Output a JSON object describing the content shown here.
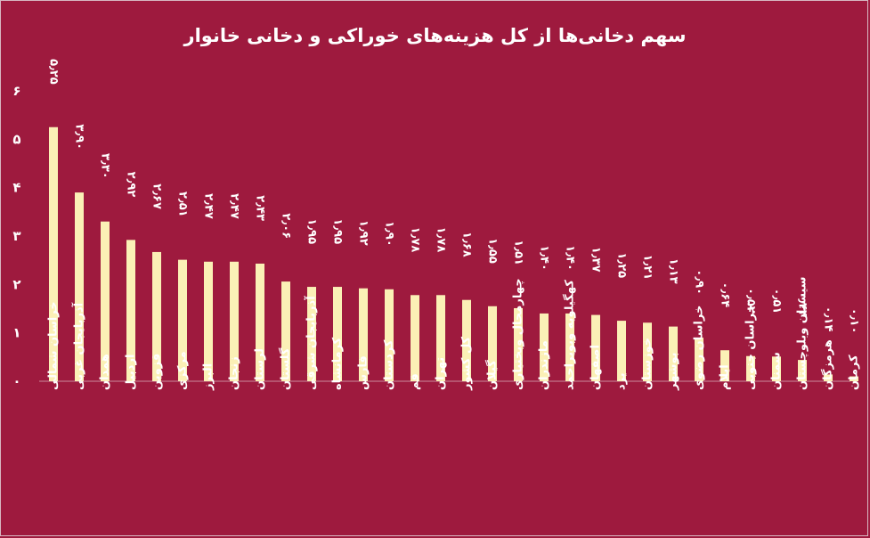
{
  "chart_data": {
    "type": "bar",
    "title": "سهم دخانی‌ها از کل هزینه‌های خوراکی و دخانی خانوار",
    "xlabel": "",
    "ylabel": "",
    "ylim": [
      0,
      6
    ],
    "yticks": [
      0,
      1,
      2,
      3,
      4,
      5,
      6
    ],
    "ytick_labels": [
      "۰",
      "۱",
      "۲",
      "۳",
      "۴",
      "۵",
      "۶"
    ],
    "grid": false,
    "legend": "none",
    "bar_color": "#fbf0b6",
    "background_color": "#9e1a3e",
    "categories": [
      "خراسان شمالی",
      "آذربایجان غربی",
      "همدان",
      "اردبیل",
      "قزوین",
      "مرکزی",
      "البرز",
      "زنجان",
      "لرستان",
      "گلستان",
      "آذربایجان شرقی",
      "کرمانشاه",
      "فارس",
      "کردستان",
      "قم",
      "تهران",
      "کل کشور",
      "گیلان",
      "چهارمحال وبختیاری",
      "مازندران",
      "کهگیلویه وبویراحمد",
      "اصفهان",
      "یزد",
      "خوزستان",
      "بوشهر",
      "خراسان رضوی",
      "ایلام",
      "خراسان جنوبی",
      "سمنان",
      "سیستان وبلوچستان",
      "هرمزگان",
      "کرمان"
    ],
    "values": [
      5.25,
      3.9,
      3.3,
      2.92,
      2.67,
      2.51,
      2.47,
      2.47,
      2.43,
      2.06,
      1.95,
      1.95,
      1.92,
      1.9,
      1.78,
      1.78,
      1.68,
      1.55,
      1.51,
      1.4,
      1.4,
      1.37,
      1.25,
      1.21,
      1.13,
      0.9,
      0.64,
      0.52,
      0.51,
      0.44,
      0.14,
      0.1
    ],
    "value_labels": [
      "۵٫۲۵",
      "۳٫۹۰",
      "۳٫۳۰",
      "۲٫۹۲",
      "۲٫۶۷",
      "۲٫۵۱",
      "۲٫۴۷",
      "۲٫۴۷",
      "۲٫۴۳",
      "۲٫۰۶",
      "۱٫۹۵",
      "۱٫۹۵",
      "۱٫۹۲",
      "۱٫۹۰",
      "۱٫۷۸",
      "۱٫۷۸",
      "۱٫۶۸",
      "۱٫۵۵",
      "۱٫۵۱",
      "۱٫۴۰",
      "۱٫۴۰",
      "۱٫۳۷",
      "۱٫۲۵",
      "۱٫۲۱",
      "۱٫۱۳",
      "۰٫۹۰",
      "۰٫۶۴",
      "۰٫۵۲",
      "۰٫۵۱",
      "۰٫۴۴",
      "۰٫۱۴",
      "۰٫۱۰"
    ]
  }
}
